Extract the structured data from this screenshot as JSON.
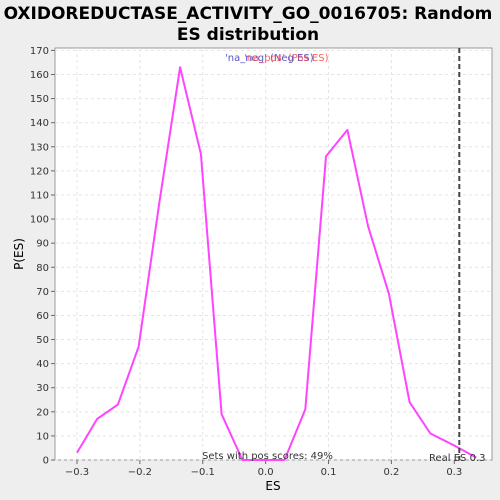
{
  "chart_data": {
    "type": "line",
    "title_line1": "OXIDOREDUCTASE_ACTIVITY_GO_0016705: Random",
    "title_line2": "ES distribution",
    "xlabel": "ES",
    "ylabel": "P(ES)",
    "xlim": [
      -0.335,
      0.36
    ],
    "ylim": [
      0,
      171
    ],
    "x_ticks": [
      -0.3,
      -0.2,
      -0.1,
      0.0,
      0.1,
      0.2,
      0.3
    ],
    "x_tick_labels": [
      "−0.3",
      "−0.2",
      "−0.1",
      "0.0",
      "0.1",
      "0.2",
      "0.3"
    ],
    "y_ticks": [
      0,
      10,
      20,
      30,
      40,
      50,
      60,
      70,
      80,
      90,
      100,
      110,
      120,
      130,
      140,
      150,
      160,
      170
    ],
    "grid": true,
    "series": [
      {
        "name": "'na_neg' (Neg ES)",
        "color": "#ff44ff",
        "x": [
          -0.3,
          -0.268,
          -0.235,
          -0.202,
          -0.169,
          -0.136,
          -0.103,
          -0.07,
          -0.037,
          -0.004,
          0.03,
          0.063,
          0.096,
          0.13,
          0.163,
          0.196,
          0.229,
          0.262,
          0.3,
          0.335
        ],
        "y": [
          3,
          17,
          23,
          47,
          107,
          163,
          127,
          19,
          0,
          0,
          0,
          21,
          126,
          137,
          97,
          69,
          24,
          11,
          6,
          1
        ]
      }
    ],
    "legend": [
      {
        "label": "'na_neg' (Neg ES)",
        "color": "#5555cc"
      },
      {
        "label": "'na_pos' (Pos ES)",
        "color": "#ff4444"
      }
    ],
    "legend_placement": "top-center",
    "real_es": {
      "value": 0.308,
      "label": "Real ES 0.3",
      "color": "#444444"
    },
    "annotation": "Sets with pos scores: 49%"
  }
}
